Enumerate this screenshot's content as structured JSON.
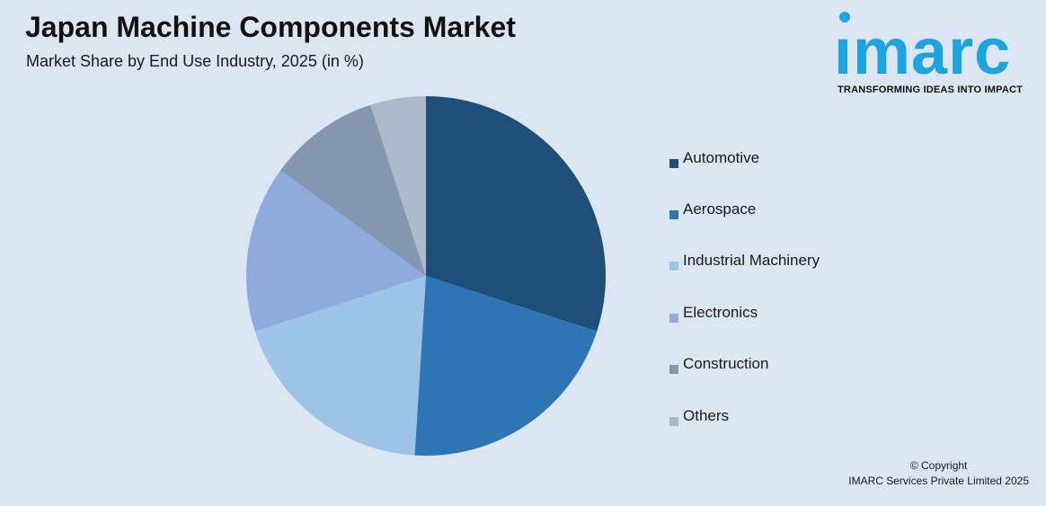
{
  "header": {
    "title": "Japan Machine Components Market",
    "subtitle": "Market Share by End Use Industry, 2025 (in %)"
  },
  "logo": {
    "brand": "imarc",
    "tagline": "TRANSFORMING IDEAS INTO IMPACT",
    "color": "#1ca3e0"
  },
  "footer": {
    "copyright_line1": "© Copyright",
    "copyright_line2": "IMARC Services Private Limited 2025"
  },
  "chart_data": {
    "type": "pie",
    "title": "Japan Machine Components Market",
    "subtitle": "Market Share by End Use Industry, 2025 (in %)",
    "categories": [
      "Automotive",
      "Aerospace",
      "Industrial Machinery",
      "Electronics",
      "Construction",
      "Others"
    ],
    "values": [
      30,
      21,
      19,
      15,
      10,
      5
    ],
    "colors": [
      "#1f4e79",
      "#2e75b6",
      "#9dc3e6",
      "#8faadc",
      "#8497b0",
      "#adb9ca"
    ],
    "legend_position": "right",
    "start_angle": "12 o'clock",
    "direction": "clockwise"
  }
}
